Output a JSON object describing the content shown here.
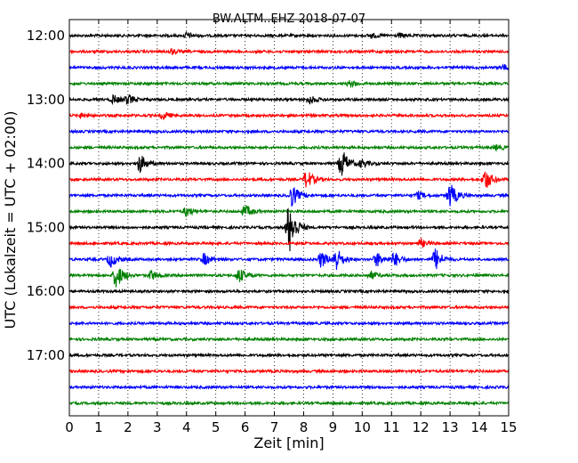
{
  "chart_data": {
    "type": "line",
    "title": "BW.ALTM..EHZ 2018-07-07",
    "xlabel": "Zeit  [min]",
    "ylabel": "UTC (Lokalzeit = UTC + 02:00)",
    "xlim": [
      0,
      15
    ],
    "x_ticks": [
      "0",
      "1",
      "2",
      "3",
      "4",
      "5",
      "6",
      "7",
      "8",
      "9",
      "10",
      "11",
      "12",
      "13",
      "14",
      "15"
    ],
    "y_ticks": [
      "12:00",
      "13:00",
      "14:00",
      "15:00",
      "16:00",
      "17:00"
    ],
    "grid": "vertical dotted",
    "trace_colors": [
      "#000000",
      "#ff0000",
      "#0000ff",
      "#008000"
    ],
    "traces": [
      {
        "start": "12:00",
        "events": [
          {
            "x": 4.0,
            "amp": 0.25
          },
          {
            "x": 10.3,
            "amp": 0.2
          },
          {
            "x": 11.3,
            "amp": 0.15
          }
        ]
      },
      {
        "start": "12:15",
        "events": [
          {
            "x": 3.5,
            "amp": 0.2
          }
        ]
      },
      {
        "start": "12:30",
        "events": [
          {
            "x": 14.8,
            "amp": 0.25
          }
        ]
      },
      {
        "start": "12:45",
        "events": [
          {
            "x": 9.6,
            "amp": 0.25
          }
        ]
      },
      {
        "start": "13:00",
        "events": [
          {
            "x": 1.5,
            "amp": 0.35
          },
          {
            "x": 2.0,
            "amp": 0.4
          },
          {
            "x": 8.2,
            "amp": 0.35
          }
        ]
      },
      {
        "start": "13:15",
        "events": [
          {
            "x": 0.4,
            "amp": 0.2
          },
          {
            "x": 3.2,
            "amp": 0.3
          }
        ]
      },
      {
        "start": "13:30",
        "events": []
      },
      {
        "start": "13:45",
        "events": [
          {
            "x": 14.6,
            "amp": 0.2
          }
        ]
      },
      {
        "start": "14:00",
        "events": [
          {
            "x": 2.4,
            "amp": 0.8
          },
          {
            "x": 9.3,
            "amp": 1.2
          },
          {
            "x": 10.0,
            "amp": 0.3
          }
        ]
      },
      {
        "start": "14:15",
        "events": [
          {
            "x": 8.1,
            "amp": 0.8
          },
          {
            "x": 14.2,
            "amp": 0.9
          }
        ]
      },
      {
        "start": "14:30",
        "events": [
          {
            "x": 7.6,
            "amp": 0.9
          },
          {
            "x": 11.9,
            "amp": 0.3
          },
          {
            "x": 13.0,
            "amp": 1.0
          }
        ]
      },
      {
        "start": "14:45",
        "events": [
          {
            "x": 4.0,
            "amp": 0.4
          },
          {
            "x": 6.0,
            "amp": 0.5
          }
        ]
      },
      {
        "start": "15:00",
        "events": [
          {
            "x": 7.5,
            "amp": 2.2
          }
        ]
      },
      {
        "start": "15:15",
        "events": [
          {
            "x": 12.0,
            "amp": 0.3
          }
        ]
      },
      {
        "start": "15:30",
        "events": [
          {
            "x": 1.4,
            "amp": 0.6
          },
          {
            "x": 4.6,
            "amp": 0.5
          },
          {
            "x": 8.6,
            "amp": 0.7
          },
          {
            "x": 9.1,
            "amp": 1.0
          },
          {
            "x": 10.5,
            "amp": 0.6
          },
          {
            "x": 11.1,
            "amp": 0.6
          },
          {
            "x": 12.5,
            "amp": 0.9
          }
        ]
      },
      {
        "start": "15:45",
        "events": [
          {
            "x": 1.6,
            "amp": 1.1
          },
          {
            "x": 2.8,
            "amp": 0.4
          },
          {
            "x": 5.8,
            "amp": 0.6
          },
          {
            "x": 10.3,
            "amp": 0.3
          }
        ]
      },
      {
        "start": "16:00",
        "events": []
      },
      {
        "start": "16:15",
        "events": []
      },
      {
        "start": "16:30",
        "events": []
      },
      {
        "start": "16:45",
        "events": []
      },
      {
        "start": "17:00",
        "events": []
      },
      {
        "start": "17:15",
        "events": []
      },
      {
        "start": "17:30",
        "events": []
      },
      {
        "start": "17:45",
        "events": []
      }
    ]
  }
}
